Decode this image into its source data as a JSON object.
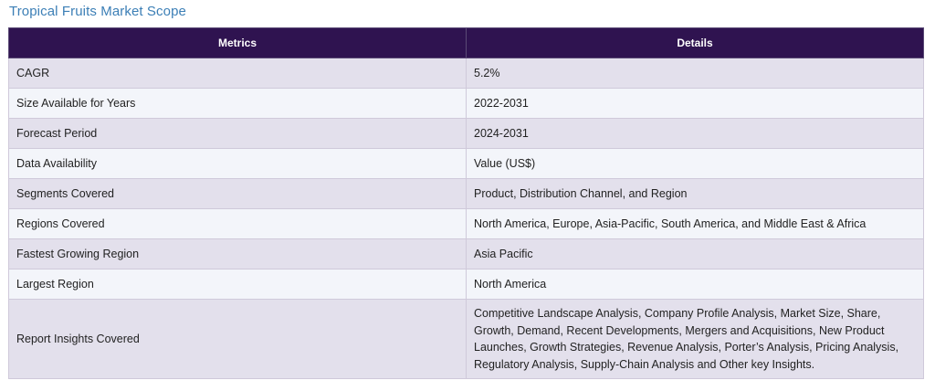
{
  "page_title": "Tropical Fruits Market Scope",
  "table": {
    "headers": [
      "Metrics",
      "Details"
    ],
    "rows": [
      {
        "metric": "CAGR",
        "detail": "5.2%"
      },
      {
        "metric": "Size Available for Years",
        "detail": "2022-2031"
      },
      {
        "metric": "Forecast Period",
        "detail": "2024-2031"
      },
      {
        "metric": "Data Availability",
        "detail": "Value (US$)"
      },
      {
        "metric": "Segments Covered",
        "detail": "Product, Distribution Channel, and Region"
      },
      {
        "metric": "Regions Covered",
        "detail": "North America, Europe, Asia-Pacific, South America, and Middle East & Africa"
      },
      {
        "metric": "Fastest Growing Region",
        "detail": "Asia Pacific"
      },
      {
        "metric": "Largest Region",
        "detail": "North America"
      },
      {
        "metric": "Report Insights Covered",
        "detail": "Competitive Landscape Analysis, Company Profile Analysis, Market Size, Share, Growth, Demand, Recent Developments, Mergers and Acquisitions, New Product Launches, Growth Strategies, Revenue Analysis, Porter’s Analysis, Pricing Analysis, Regulatory Analysis, Supply-Chain Analysis and Other key Insights."
      }
    ]
  },
  "colors": {
    "header_bg": "#2f1350",
    "title_color": "#3c7fb6",
    "row_odd": "#e3e0ec",
    "row_even": "#f3f5fa"
  }
}
